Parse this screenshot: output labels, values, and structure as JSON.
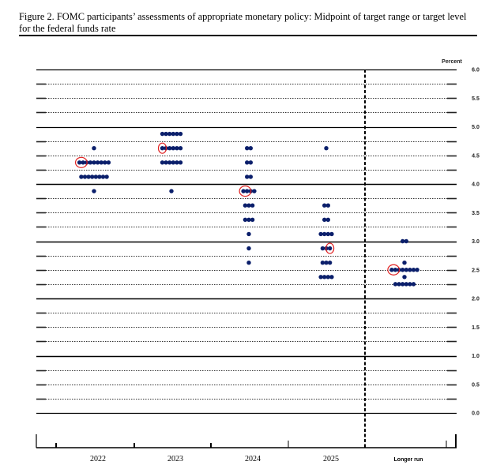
{
  "figure": {
    "title": "Figure 2.  FOMC participants’ assessments of appropriate monetary policy:  Midpoint of target range or target level for the federal funds rate"
  },
  "chart_data": {
    "type": "scatter",
    "subtype": "dot-plot",
    "title": "FOMC participants’ assessments of appropriate monetary policy: Midpoint of target range or target level for the federal funds rate",
    "xlabel": "",
    "ylabel": "Percent",
    "ylim": [
      0.0,
      6.0
    ],
    "yticks": [
      "0.0",
      "0.5",
      "1.0",
      "1.5",
      "2.0",
      "2.5",
      "3.0",
      "3.5",
      "4.0",
      "4.5",
      "5.0",
      "5.5",
      "6.0"
    ],
    "categories": [
      "2022",
      "2023",
      "2024",
      "2025",
      "Longer run"
    ],
    "grid": true,
    "dot_color": "#0b1f6b",
    "highlight_color": "#e02020",
    "columns": [
      {
        "category": "2022",
        "dots": [
          {
            "rate": 4.625,
            "count": 1
          },
          {
            "rate": 4.375,
            "count": 9,
            "highlighted": 2
          },
          {
            "rate": 4.125,
            "count": 8
          },
          {
            "rate": 3.875,
            "count": 1
          }
        ]
      },
      {
        "category": "2023",
        "dots": [
          {
            "rate": 4.875,
            "count": 6
          },
          {
            "rate": 4.625,
            "count": 6,
            "highlighted": 1
          },
          {
            "rate": 4.375,
            "count": 6
          },
          {
            "rate": 3.875,
            "count": 1
          }
        ]
      },
      {
        "category": "2024",
        "dots": [
          {
            "rate": 4.625,
            "count": 2
          },
          {
            "rate": 4.375,
            "count": 2
          },
          {
            "rate": 4.125,
            "count": 2
          },
          {
            "rate": 3.875,
            "count": 4,
            "highlighted": 2
          },
          {
            "rate": 3.625,
            "count": 3
          },
          {
            "rate": 3.375,
            "count": 3
          },
          {
            "rate": 3.125,
            "count": 1
          },
          {
            "rate": 2.875,
            "count": 1
          },
          {
            "rate": 2.625,
            "count": 1
          }
        ]
      },
      {
        "category": "2025",
        "dots": [
          {
            "rate": 4.625,
            "count": 1
          },
          {
            "rate": 3.625,
            "count": 2
          },
          {
            "rate": 3.375,
            "count": 2
          },
          {
            "rate": 3.125,
            "count": 4
          },
          {
            "rate": 2.875,
            "count": 3,
            "highlighted": 1,
            "highlight_position": "right"
          },
          {
            "rate": 2.625,
            "count": 3
          },
          {
            "rate": 2.375,
            "count": 4
          }
        ]
      },
      {
        "category": "Longer run",
        "dots": [
          {
            "rate": 3.0,
            "count": 2
          },
          {
            "rate": 2.625,
            "count": 1
          },
          {
            "rate": 2.5,
            "count": 8,
            "highlighted": 2
          },
          {
            "rate": 2.375,
            "count": 1
          },
          {
            "rate": 2.25,
            "count": 6
          }
        ]
      }
    ]
  }
}
